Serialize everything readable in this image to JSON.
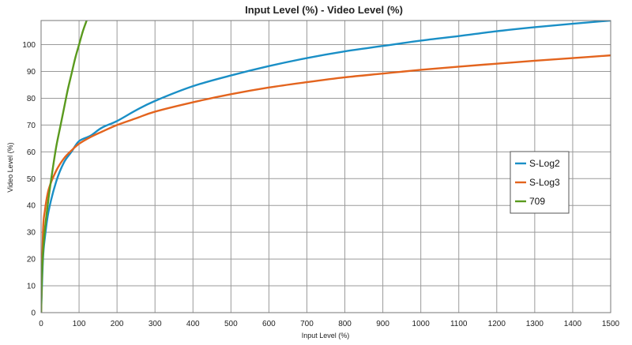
{
  "chart_data": {
    "type": "line",
    "title": "Input Level (%) - Video Level (%)",
    "xlabel": "Input Level (%)",
    "ylabel": "Video Level (%)",
    "xlim": [
      0,
      1500
    ],
    "ylim": [
      0,
      109
    ],
    "xticks": [
      0,
      100,
      200,
      300,
      400,
      500,
      600,
      700,
      800,
      900,
      1000,
      1100,
      1200,
      1300,
      1400,
      1500
    ],
    "yticks": [
      0,
      10,
      20,
      30,
      40,
      50,
      60,
      70,
      80,
      90,
      100
    ],
    "grid": true,
    "legend_position": "right",
    "series": [
      {
        "name": "S-Log2",
        "color": "#1a8fc6",
        "x": [
          0,
          5,
          10,
          20,
          40,
          60,
          80,
          100,
          130,
          160,
          200,
          250,
          300,
          400,
          500,
          600,
          700,
          800,
          900,
          1000,
          1100,
          1200,
          1300,
          1400,
          1500
        ],
        "y": [
          0,
          20,
          28,
          38,
          49,
          56,
          60,
          64,
          66,
          69,
          71.5,
          75.5,
          79,
          84.5,
          88.5,
          92,
          95,
          97.5,
          99.5,
          101.5,
          103.2,
          105,
          106.5,
          107.8,
          109
        ]
      },
      {
        "name": "S-Log3",
        "color": "#e3641e",
        "x": [
          0,
          5,
          10,
          20,
          40,
          60,
          80,
          100,
          130,
          160,
          200,
          250,
          300,
          400,
          500,
          600,
          700,
          800,
          900,
          1000,
          1100,
          1200,
          1300,
          1400,
          1500
        ],
        "y": [
          0,
          30,
          38,
          46,
          53,
          57.5,
          60.5,
          63,
          65.5,
          67.5,
          70,
          72.5,
          75,
          78.5,
          81.5,
          84,
          86,
          87.8,
          89.2,
          90.6,
          91.8,
          92.9,
          94,
          95,
          96
        ]
      },
      {
        "name": "709",
        "color": "#5a9a1e",
        "x": [
          0,
          2,
          5,
          10,
          20,
          30,
          40,
          50,
          60,
          70,
          80,
          90,
          100,
          110,
          120
        ],
        "y": [
          0,
          12,
          22,
          31,
          43,
          53,
          62,
          69,
          76,
          83,
          89,
          95,
          100,
          105,
          109
        ]
      }
    ]
  }
}
